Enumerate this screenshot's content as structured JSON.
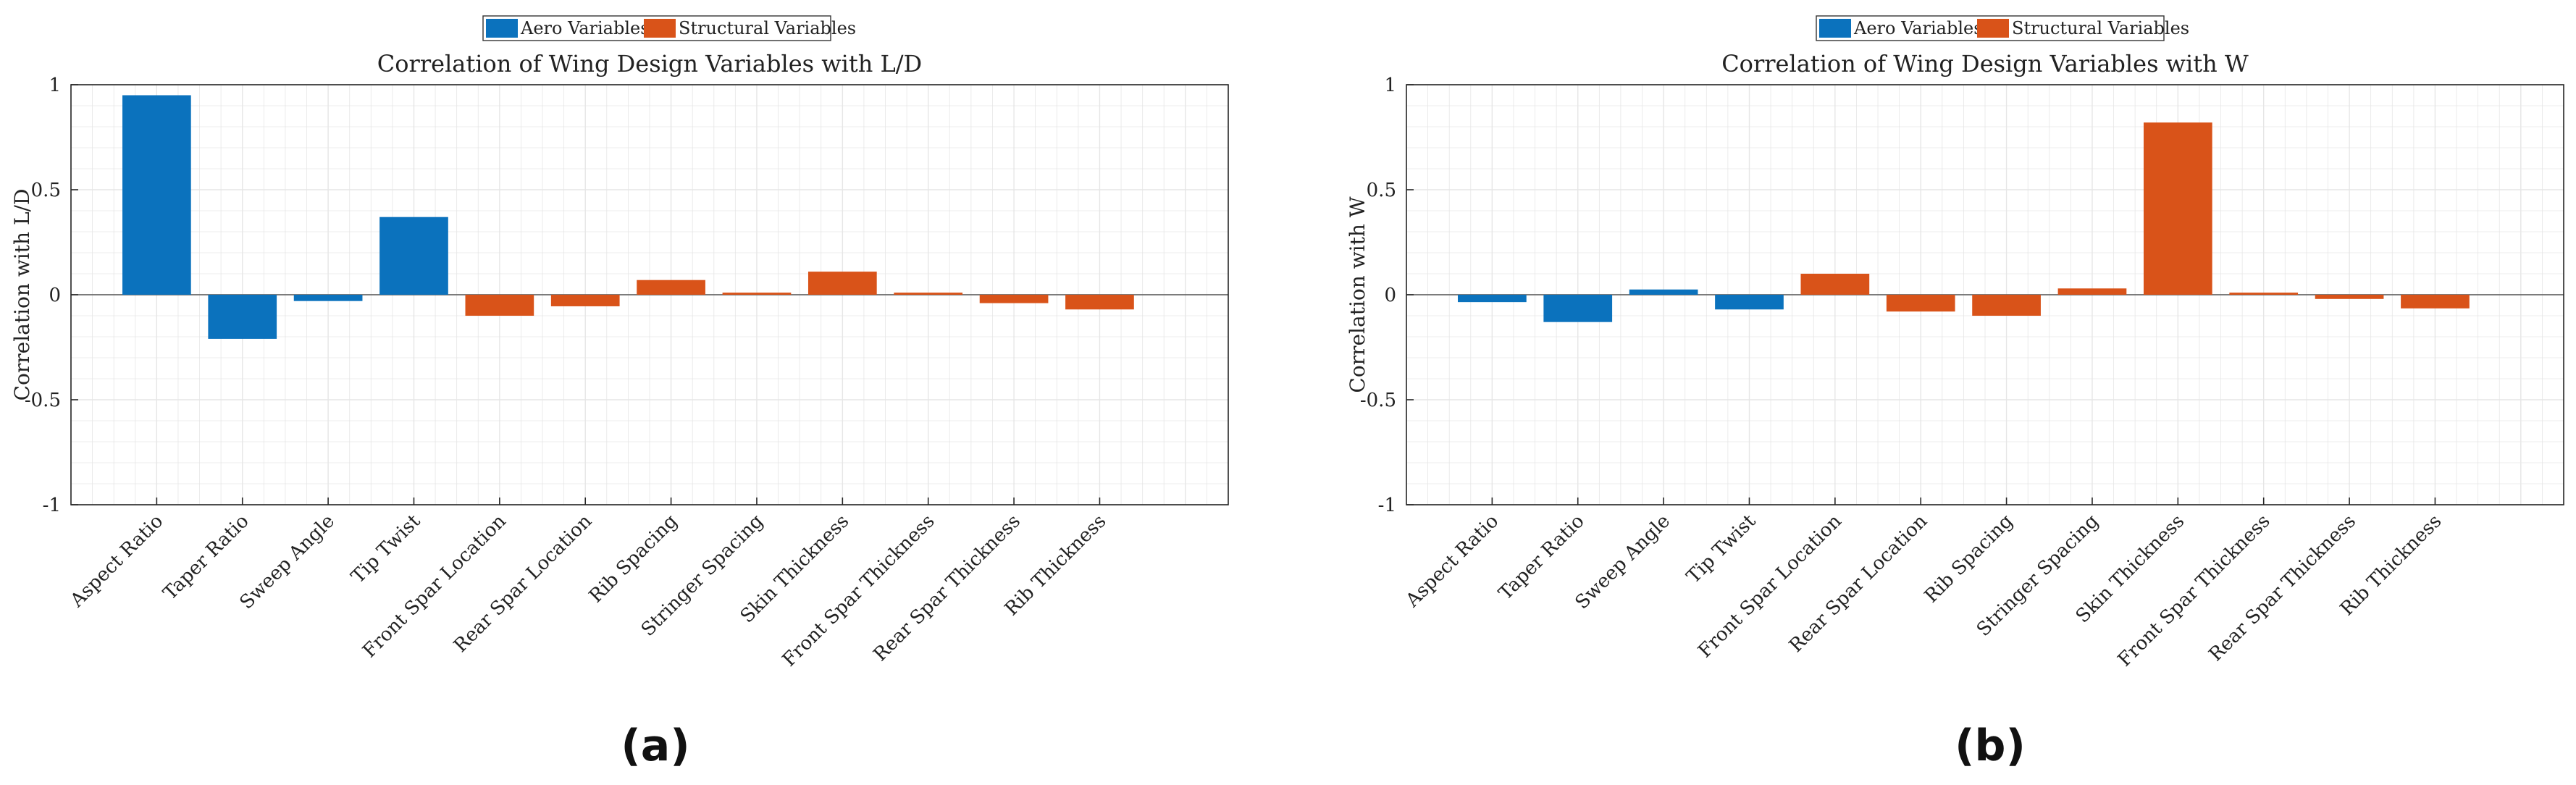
{
  "figure": {
    "legend_entries": [
      "Aero Variables",
      "Structural Variables"
    ],
    "panel_labels": [
      "(a)",
      "(b)"
    ]
  },
  "colors": {
    "aero": "#0b72bd",
    "structural": "#d95319",
    "grid": "#e6e6e6",
    "axis": "#262626"
  },
  "chart_data": [
    {
      "type": "bar",
      "title": "Correlation of Wing Design Variables with L/D",
      "ylabel": "Correlation with L/D",
      "ylim": [
        -1,
        1
      ],
      "yticks": [
        "1",
        "0.5",
        "0",
        "-0.5",
        "-1"
      ],
      "grid": true,
      "legend": "top-center",
      "categories": [
        "Aspect Ratio",
        "Taper Ratio",
        "Sweep Angle",
        "Tip Twist",
        "Front Spar Location",
        "Rear Spar Location",
        "Rib Spacing",
        "Stringer Spacing",
        "Skin Thickness",
        "Front Spar Thickness",
        "Rear Spar Thickness",
        "Rib Thickness"
      ],
      "groups": [
        "aero",
        "aero",
        "aero",
        "aero",
        "structural",
        "structural",
        "structural",
        "structural",
        "structural",
        "structural",
        "structural",
        "structural"
      ],
      "values": [
        0.95,
        -0.21,
        -0.03,
        0.37,
        -0.1,
        -0.055,
        0.07,
        0.01,
        0.11,
        0.01,
        -0.04,
        -0.07
      ],
      "panel_label": "(a)"
    },
    {
      "type": "bar",
      "title": "Correlation of Wing Design Variables with W",
      "ylabel": "Correlation with W",
      "ylim": [
        -1,
        1
      ],
      "yticks": [
        "1",
        "0.5",
        "0",
        "-0.5",
        "-1"
      ],
      "grid": true,
      "legend": "top-center",
      "categories": [
        "Aspect Ratio",
        "Taper Ratio",
        "Sweep Angle",
        "Tip Twist",
        "Front Spar Location",
        "Rear Spar Location",
        "Rib Spacing",
        "Stringer Spacing",
        "Skin Thickness",
        "Front Spar Thickness",
        "Rear Spar Thickness",
        "Rib Thickness"
      ],
      "groups": [
        "aero",
        "aero",
        "aero",
        "aero",
        "structural",
        "structural",
        "structural",
        "structural",
        "structural",
        "structural",
        "structural",
        "structural"
      ],
      "values": [
        -0.035,
        -0.13,
        0.025,
        -0.07,
        0.1,
        -0.08,
        -0.1,
        0.03,
        0.82,
        0.01,
        -0.02,
        -0.065
      ],
      "panel_label": "(b)"
    }
  ]
}
